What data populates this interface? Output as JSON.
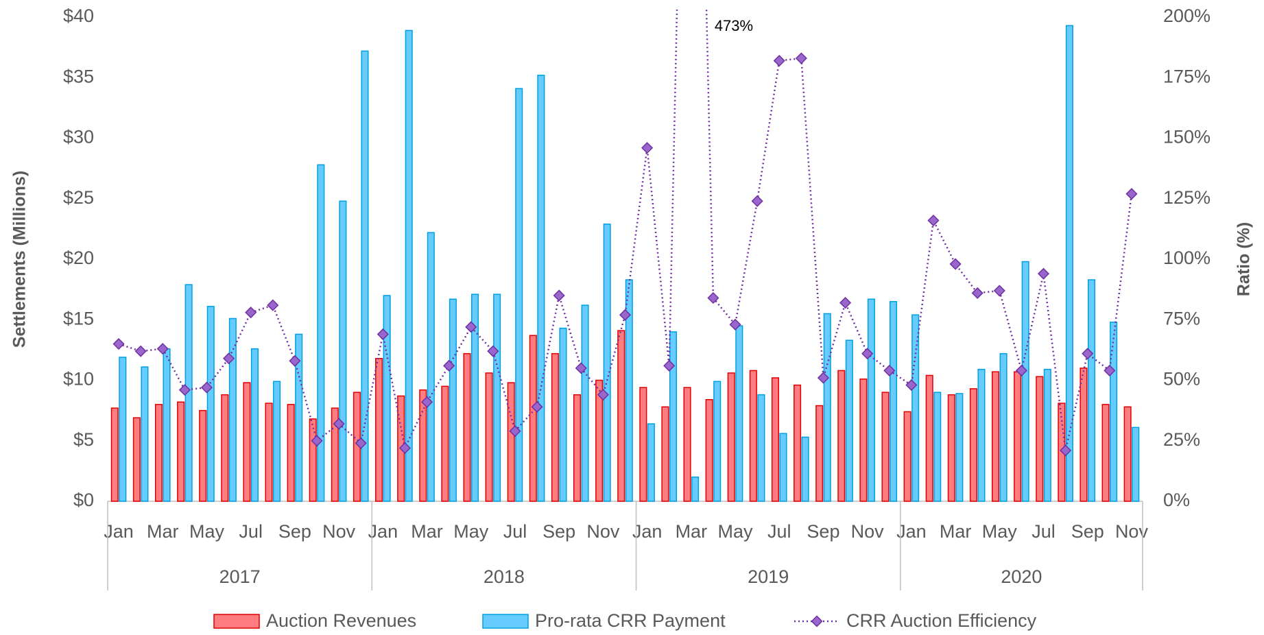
{
  "chart_data": {
    "type": "bar_line",
    "y_title": "Settlements (Millions)",
    "y2_title": "Ratio (%)",
    "categories": [
      "Jan",
      null,
      "Mar",
      null,
      "May",
      null,
      "Jul",
      null,
      "Sep",
      null,
      "Nov",
      null,
      "Jan",
      null,
      "Mar",
      null,
      "May",
      null,
      "Jul",
      null,
      "Sep",
      null,
      "Nov",
      null,
      "Jan",
      null,
      "Mar",
      null,
      "May",
      null,
      "Jul",
      null,
      "Sep",
      null,
      "Nov",
      null,
      "Jan",
      null,
      "Mar",
      null,
      "May",
      null,
      "Jul",
      null,
      "Sep",
      null,
      "Nov"
    ],
    "year_labels": [
      "2017",
      "2018",
      "2019",
      "2020"
    ],
    "series": [
      {
        "name": "Auction Revenues",
        "kind": "bar",
        "color": "#ff7c80",
        "edge": "#e00000",
        "values": [
          7.7,
          6.9,
          8.0,
          8.2,
          7.5,
          8.8,
          9.8,
          8.1,
          8.0,
          6.8,
          7.7,
          9.0,
          11.8,
          8.7,
          9.2,
          9.5,
          12.2,
          10.6,
          9.8,
          13.7,
          12.2,
          8.8,
          10.0,
          14.1,
          9.4,
          7.8,
          9.4,
          8.4,
          10.6,
          10.8,
          10.2,
          9.6,
          7.9,
          10.8,
          10.1,
          9.0,
          7.4,
          10.4,
          8.8,
          9.3,
          10.7,
          10.7,
          10.3,
          8.1,
          11.0,
          8.0,
          7.8
        ]
      },
      {
        "name": "Pro-rata CRR Payment",
        "kind": "bar",
        "color": "#66ccff",
        "edge": "#00a0e0",
        "values": [
          11.9,
          11.1,
          12.6,
          17.9,
          16.1,
          15.1,
          12.6,
          9.9,
          13.8,
          27.8,
          24.8,
          37.2,
          17.0,
          38.9,
          22.2,
          16.7,
          17.1,
          17.1,
          34.1,
          35.2,
          14.3,
          16.2,
          22.9,
          18.3,
          6.4,
          14.0,
          2.0,
          9.9,
          14.5,
          8.8,
          5.6,
          5.3,
          15.5,
          13.3,
          16.7,
          16.5,
          15.4,
          9.0,
          8.9,
          10.9,
          12.2,
          19.8,
          10.9,
          39.3,
          18.3,
          14.8,
          6.1
        ]
      },
      {
        "name": "CRR Auction Efficiency",
        "kind": "line",
        "axis": "y2",
        "color": "#7030a0",
        "marker_color": "#9966cc",
        "values": [
          65,
          62,
          63,
          46,
          47,
          59,
          78,
          81,
          58,
          25,
          32,
          24,
          69,
          22,
          41,
          56,
          72,
          62,
          29,
          39,
          85,
          55,
          44,
          77,
          146,
          56,
          473,
          84,
          73,
          124,
          182,
          183,
          51,
          82,
          61,
          54,
          48,
          116,
          98,
          86,
          87,
          54,
          94,
          21,
          61,
          54,
          127
        ],
        "value_labels": [
          null,
          null,
          null,
          null,
          null,
          null,
          null,
          null,
          null,
          null,
          null,
          null,
          null,
          null,
          null,
          null,
          null,
          null,
          null,
          null,
          null,
          null,
          null,
          null,
          null,
          null,
          "473%",
          null,
          null,
          null,
          null,
          null,
          null,
          null,
          null,
          null,
          null,
          null,
          null,
          null,
          null,
          null,
          null,
          null,
          null,
          null,
          null
        ]
      }
    ],
    "ylim": [
      0,
      40
    ],
    "yticks": [
      {
        "value": 0,
        "label": "$0"
      },
      {
        "value": 5,
        "label": "$5"
      },
      {
        "value": 10,
        "label": "$10"
      },
      {
        "value": 15,
        "label": "$15"
      },
      {
        "value": 20,
        "label": "$20"
      },
      {
        "value": 25,
        "label": "$25"
      },
      {
        "value": 30,
        "label": "$30"
      },
      {
        "value": 35,
        "label": "$35"
      },
      {
        "value": 40,
        "label": "$40"
      }
    ],
    "y2lim": [
      0,
      200
    ],
    "y2ticks": [
      {
        "value": 0,
        "label": "0%"
      },
      {
        "value": 25,
        "label": "25%"
      },
      {
        "value": 50,
        "label": "50%"
      },
      {
        "value": 75,
        "label": "75%"
      },
      {
        "value": 100,
        "label": "100%"
      },
      {
        "value": 125,
        "label": "125%"
      },
      {
        "value": 150,
        "label": "150%"
      },
      {
        "value": 175,
        "label": "175%"
      },
      {
        "value": 200,
        "label": "200%"
      }
    ],
    "grid": false
  }
}
